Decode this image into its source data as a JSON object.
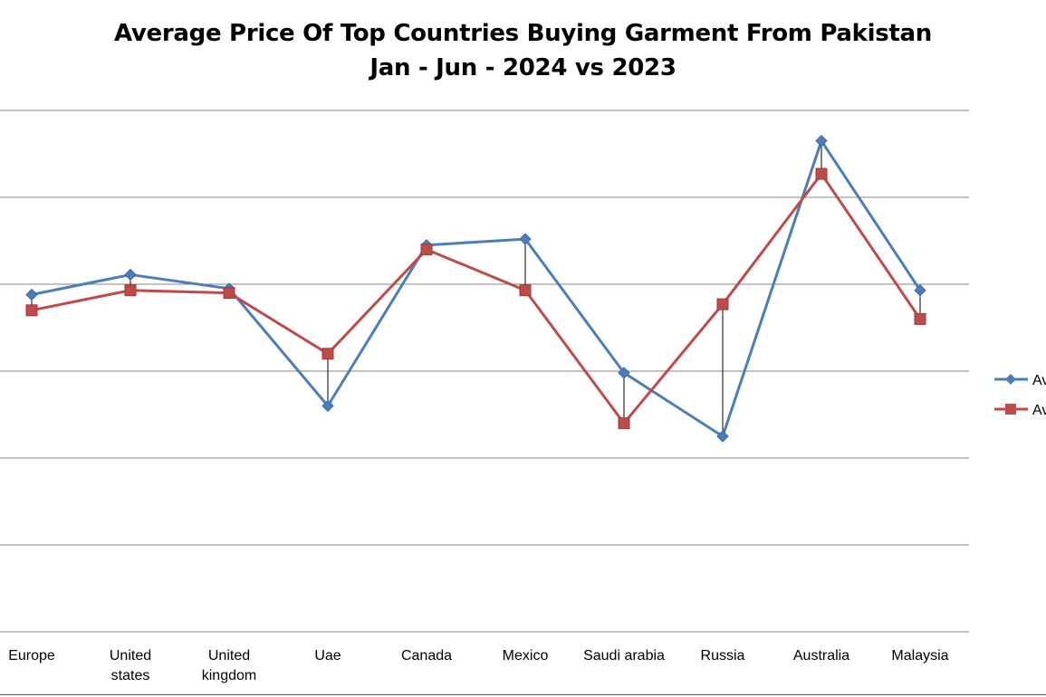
{
  "chart_data": {
    "type": "line",
    "title": "Average Price Of Top Countries Buying Garment From Pakistan",
    "subtitle": "Jan - Jun - 2024 vs 2023",
    "categories": [
      "Europe",
      "United states",
      "United kingdom",
      "Uae",
      "Canada",
      "Mexico",
      "Saudi arabia",
      "Russia",
      "Australia",
      "Malaysia"
    ],
    "series": [
      {
        "name": "Av",
        "color": "#4a7ebb",
        "marker": "diamond",
        "values": [
          3.88,
          4.11,
          3.95,
          2.6,
          4.45,
          4.52,
          2.98,
          2.25,
          5.65,
          3.93
        ]
      },
      {
        "name": "Av",
        "color": "#be4b48",
        "marker": "square",
        "values": [
          3.7,
          3.93,
          3.9,
          3.2,
          4.4,
          3.93,
          2.4,
          3.77,
          5.27,
          3.6
        ]
      }
    ],
    "ylim": [
      0,
      6
    ],
    "gridlines": true,
    "drop_lines": true,
    "legend": "right"
  }
}
